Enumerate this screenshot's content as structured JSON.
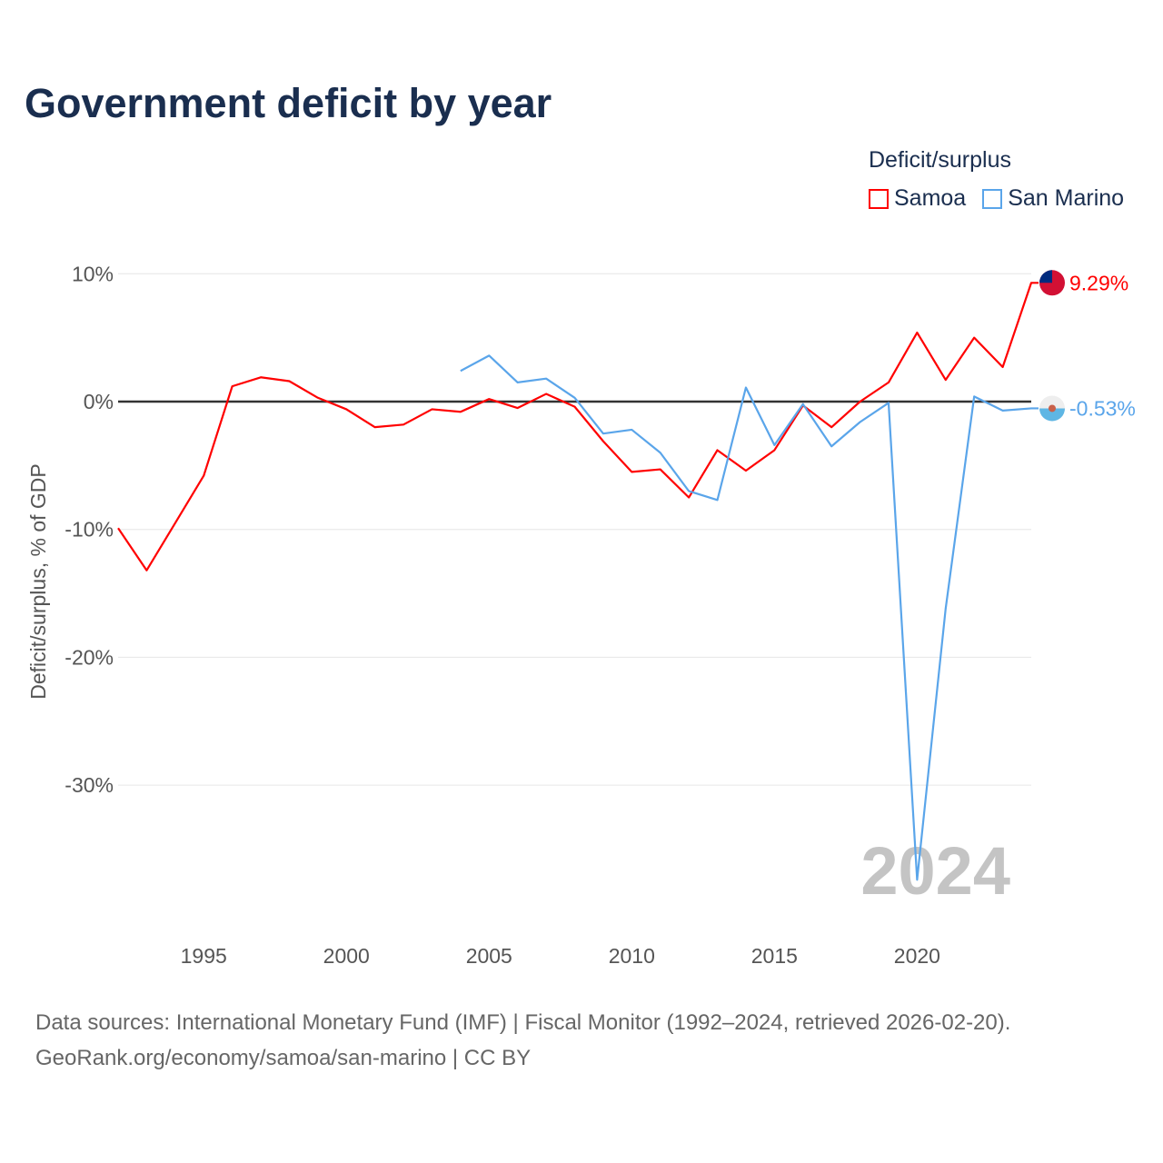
{
  "title": "Government deficit by year",
  "legend_title": "Deficit/surplus",
  "source_line1": "Data sources: International Monetary Fund (IMF) | Fiscal Monitor (1992–2024, retrieved 2026-02-20).",
  "source_line2": "GeoRank.org/economy/samoa/san-marino | CC BY",
  "chart_data": {
    "type": "line",
    "title": "Government deficit by year",
    "ylabel": "Deficit/surplus, % of GDP",
    "xlabel": "",
    "ylim": [
      -40,
      11
    ],
    "xlim": [
      1992,
      2024
    ],
    "yticks": [
      10,
      0,
      -10,
      -20,
      -30
    ],
    "ytick_labels": [
      "10%",
      "0%",
      "-10%",
      "-20%",
      "-30%"
    ],
    "xticks": [
      1995,
      2000,
      2005,
      2010,
      2015,
      2020
    ],
    "xtick_labels": [
      "1995",
      "2000",
      "2005",
      "2010",
      "2015",
      "2020"
    ],
    "year_watermark": "2024",
    "legend_placement": "top-right",
    "series": [
      {
        "name": "Samoa",
        "color": "#ff0000",
        "end_label": "9.29%",
        "x": [
          1992,
          1993,
          1994,
          1995,
          1996,
          1997,
          1998,
          1999,
          2000,
          2001,
          2002,
          2003,
          2004,
          2005,
          2006,
          2007,
          2008,
          2009,
          2010,
          2011,
          2012,
          2013,
          2014,
          2015,
          2016,
          2017,
          2018,
          2019,
          2020,
          2021,
          2022,
          2023,
          2024
        ],
        "values": [
          -9.9,
          -13.2,
          -9.5,
          -5.8,
          1.2,
          1.9,
          1.6,
          0.3,
          -0.6,
          -2.0,
          -1.8,
          -0.6,
          -0.8,
          0.2,
          -0.5,
          0.6,
          -0.4,
          -3.1,
          -5.5,
          -5.3,
          -7.5,
          -3.8,
          -5.4,
          -3.8,
          -0.3,
          -2.0,
          0.0,
          1.5,
          5.4,
          1.7,
          5.0,
          2.7,
          9.29
        ]
      },
      {
        "name": "San Marino",
        "color": "#5aa5ea",
        "end_label": "-0.53%",
        "x": [
          2004,
          2005,
          2006,
          2007,
          2008,
          2009,
          2010,
          2011,
          2012,
          2013,
          2014,
          2015,
          2016,
          2017,
          2018,
          2019,
          2020,
          2021,
          2022,
          2023,
          2024
        ],
        "values": [
          2.4,
          3.6,
          1.5,
          1.8,
          0.3,
          -2.5,
          -2.2,
          -4.0,
          -7.0,
          -7.7,
          1.1,
          -3.4,
          -0.2,
          -3.5,
          -1.6,
          -0.1,
          -37.4,
          -16.2,
          0.4,
          -0.7,
          -0.53
        ]
      }
    ]
  }
}
